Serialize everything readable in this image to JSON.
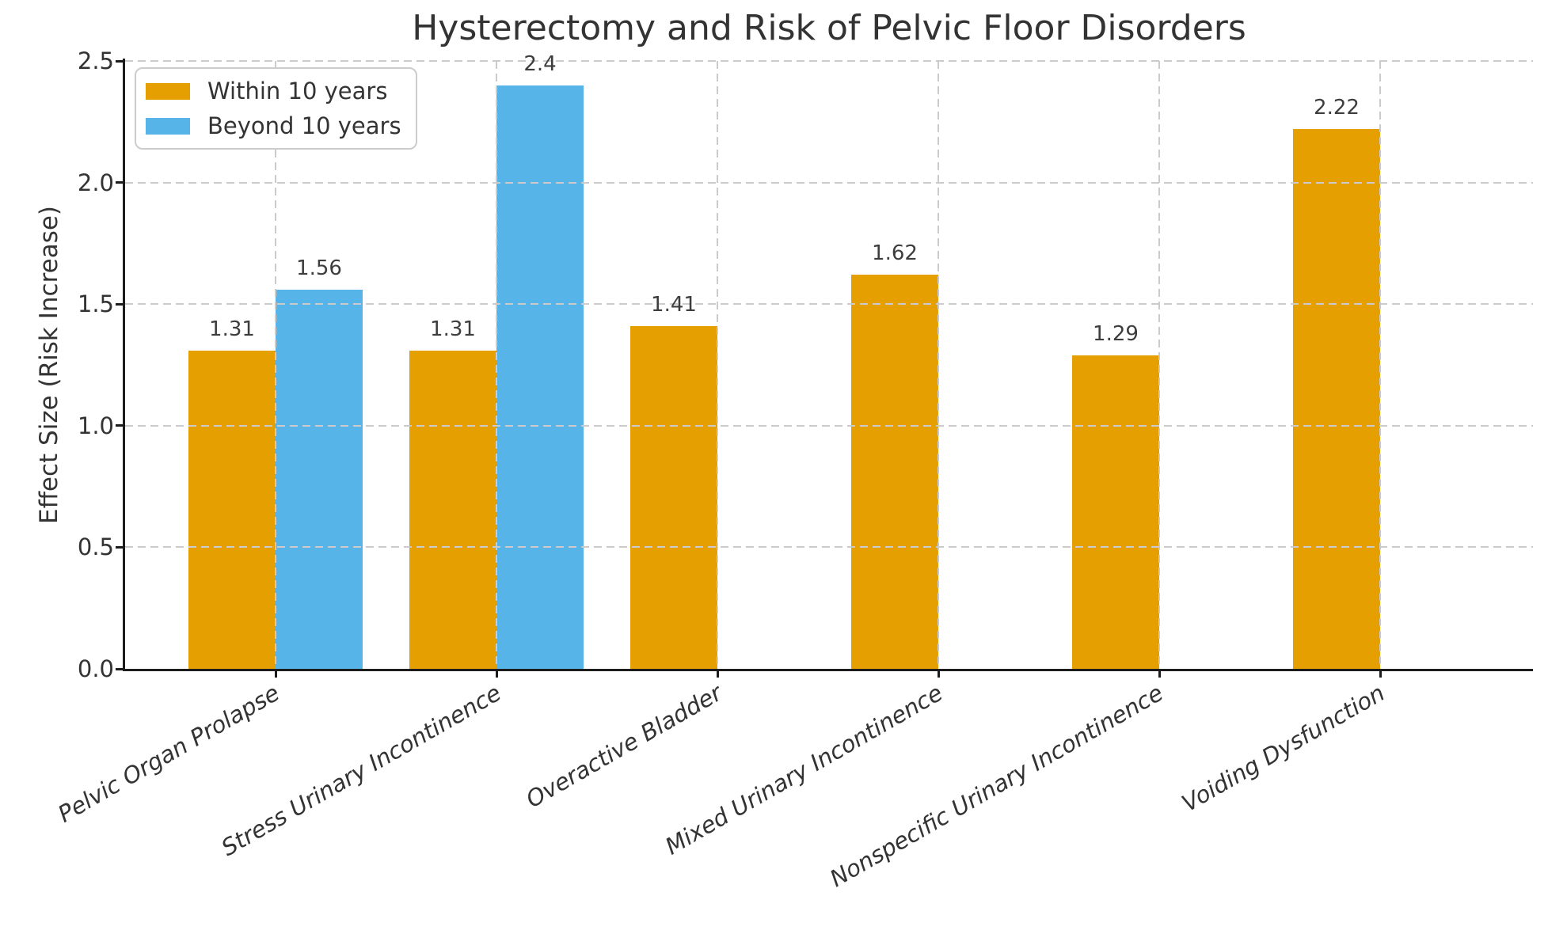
{
  "chart_data": {
    "type": "bar",
    "title": "Hysterectomy and Risk of Pelvic Floor Disorders",
    "xlabel": "",
    "ylabel": "Effect Size (Risk Increase)",
    "categories": [
      "Pelvic Organ Prolapse",
      "Stress Urinary Incontinence",
      "Overactive Bladder",
      "Mixed Urinary Incontinence",
      "Nonspecific Urinary Incontinence",
      "Voiding Dysfunction"
    ],
    "series": [
      {
        "name": "Within 10 years",
        "color": "#E69F00",
        "values": [
          1.31,
          1.31,
          1.41,
          1.62,
          1.29,
          2.22
        ],
        "value_labels": [
          "1.31",
          "1.31",
          "1.41",
          "1.62",
          "1.29",
          "2.22"
        ]
      },
      {
        "name": "Beyond 10 years",
        "color": "#56B4E9",
        "values": [
          1.56,
          2.4,
          null,
          null,
          null,
          null
        ],
        "value_labels": [
          "1.56",
          "2.4",
          null,
          null,
          null,
          null
        ]
      }
    ],
    "ylim": [
      0,
      2.5
    ],
    "yticks": [
      "0.0",
      "0.5",
      "1.0",
      "1.5",
      "2.0",
      "2.5"
    ],
    "grid": "dashed, horizontal and vertical, drawn above bars",
    "legend_position": "upper left",
    "styling": {
      "grid_color": "#cbcbcb",
      "spine_color": "#1c1c1c",
      "text_color": "#333333",
      "background": "#ffffff"
    }
  }
}
